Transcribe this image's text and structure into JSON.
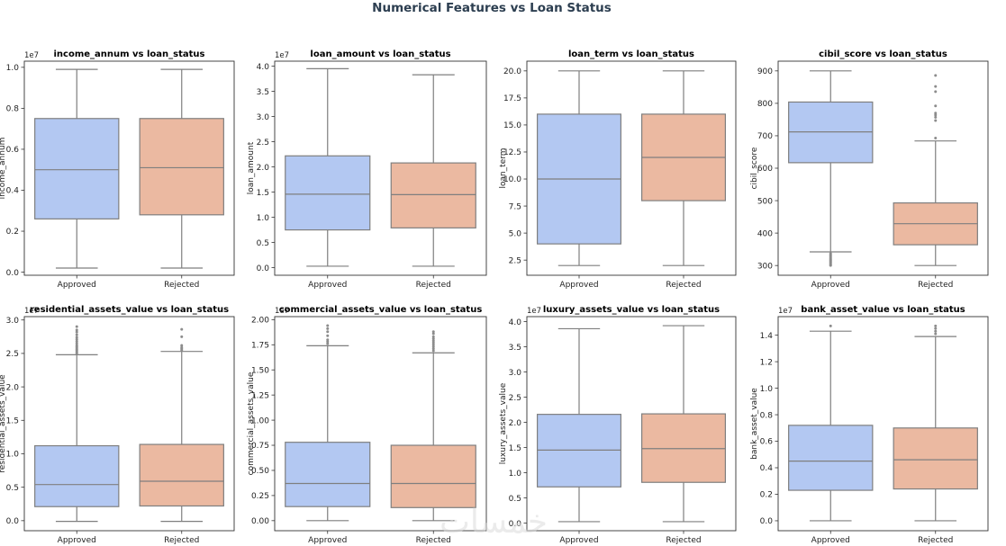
{
  "figure": {
    "suptitle": "Numerical Features vs Loan Status",
    "watermark": "خمسات",
    "palette": {
      "Approved": "#b3c8f2",
      "Rejected": "#ebb9a1",
      "line": "#7f7f7f",
      "outlier": "#8c8c8c"
    }
  },
  "chart_data": [
    {
      "type": "box",
      "title": "income_annum vs loan_status",
      "xlabel": "",
      "ylabel": "income_annum",
      "scale_label": "1e7",
      "categories": [
        "Approved",
        "Rejected"
      ],
      "ylim": [
        -0.015,
        1.03
      ],
      "yticks": [
        0.0,
        0.2,
        0.4,
        0.6,
        0.8,
        1.0
      ],
      "tick_fmt": 1,
      "boxes": [
        {
          "name": "Approved",
          "whislo": 0.02,
          "q1": 0.26,
          "med": 0.5,
          "q3": 0.75,
          "whishi": 0.99,
          "fliers": []
        },
        {
          "name": "Rejected",
          "whislo": 0.02,
          "q1": 0.28,
          "med": 0.51,
          "q3": 0.75,
          "whishi": 0.99,
          "fliers": []
        }
      ]
    },
    {
      "type": "box",
      "title": "loan_amount vs loan_status",
      "xlabel": "",
      "ylabel": "loan_amount",
      "scale_label": "1e7",
      "categories": [
        "Approved",
        "Rejected"
      ],
      "ylim": [
        -0.15,
        4.1
      ],
      "yticks": [
        0.0,
        0.5,
        1.0,
        1.5,
        2.0,
        2.5,
        3.0,
        3.5,
        4.0
      ],
      "tick_fmt": 1,
      "boxes": [
        {
          "name": "Approved",
          "whislo": 0.03,
          "q1": 0.75,
          "med": 1.46,
          "q3": 2.22,
          "whishi": 3.95,
          "fliers": []
        },
        {
          "name": "Rejected",
          "whislo": 0.03,
          "q1": 0.79,
          "med": 1.45,
          "q3": 2.08,
          "whishi": 3.83,
          "fliers": []
        }
      ]
    },
    {
      "type": "box",
      "title": "loan_term vs loan_status",
      "xlabel": "",
      "ylabel": "loan_term",
      "scale_label": "",
      "categories": [
        "Approved",
        "Rejected"
      ],
      "ylim": [
        1.1,
        20.9
      ],
      "yticks": [
        2.5,
        5.0,
        7.5,
        10.0,
        12.5,
        15.0,
        17.5,
        20.0
      ],
      "tick_fmt": 1,
      "boxes": [
        {
          "name": "Approved",
          "whislo": 2,
          "q1": 4,
          "med": 10,
          "q3": 16,
          "whishi": 20,
          "fliers": []
        },
        {
          "name": "Rejected",
          "whislo": 2,
          "q1": 8,
          "med": 12,
          "q3": 16,
          "whishi": 20,
          "fliers": []
        }
      ]
    },
    {
      "type": "box",
      "title": "cibil_score vs loan_status",
      "xlabel": "",
      "ylabel": "cibil_score",
      "scale_label": "",
      "categories": [
        "Approved",
        "Rejected"
      ],
      "ylim": [
        270,
        930
      ],
      "yticks": [
        300,
        400,
        500,
        600,
        700,
        800,
        900
      ],
      "tick_fmt": 0,
      "boxes": [
        {
          "name": "Approved",
          "whislo": 342,
          "q1": 617,
          "med": 712,
          "q3": 804,
          "whishi": 900,
          "fliers": [
            300,
            303,
            306,
            309,
            312,
            315,
            318,
            321,
            325,
            329,
            333,
            337
          ]
        },
        {
          "name": "Rejected",
          "whislo": 300,
          "q1": 364,
          "med": 429,
          "q3": 493,
          "whishi": 684,
          "fliers": [
            693,
            747,
            757,
            764,
            770,
            792,
            836,
            852,
            886
          ]
        }
      ]
    },
    {
      "type": "box",
      "title": "residential_assets_value vs loan_status",
      "xlabel": "",
      "ylabel": "residential_assets_value",
      "scale_label": "1e7",
      "categories": [
        "Approved",
        "Rejected"
      ],
      "ylim": [
        -0.15,
        3.05
      ],
      "yticks": [
        0.0,
        0.5,
        1.0,
        1.5,
        2.0,
        2.5,
        3.0
      ],
      "tick_fmt": 1,
      "boxes": [
        {
          "name": "Approved",
          "whislo": -0.01,
          "q1": 0.21,
          "med": 0.54,
          "q3": 1.12,
          "whishi": 2.48,
          "fliers": [
            2.5,
            2.52,
            2.54,
            2.56,
            2.58,
            2.6,
            2.62,
            2.65,
            2.68,
            2.71,
            2.74,
            2.78,
            2.82,
            2.85,
            2.9
          ]
        },
        {
          "name": "Rejected",
          "whislo": -0.01,
          "q1": 0.22,
          "med": 0.59,
          "q3": 1.14,
          "whishi": 2.53,
          "fliers": [
            2.55,
            2.57,
            2.59,
            2.62,
            2.75,
            2.86
          ]
        }
      ]
    },
    {
      "type": "box",
      "title": "commercial_assets_value vs loan_status",
      "xlabel": "",
      "ylabel": "commercial_assets_value",
      "scale_label": "1e7",
      "categories": [
        "Approved",
        "Rejected"
      ],
      "ylim": [
        -0.1,
        2.03
      ],
      "yticks": [
        0.0,
        0.25,
        0.5,
        0.75,
        1.0,
        1.25,
        1.5,
        1.75,
        2.0
      ],
      "tick_fmt": 2,
      "boxes": [
        {
          "name": "Approved",
          "whislo": 0.0,
          "q1": 0.14,
          "med": 0.37,
          "q3": 0.78,
          "whishi": 1.74,
          "fliers": [
            1.76,
            1.78,
            1.8,
            1.84,
            1.88,
            1.91,
            1.94
          ]
        },
        {
          "name": "Rejected",
          "whislo": 0.0,
          "q1": 0.13,
          "med": 0.37,
          "q3": 0.75,
          "whishi": 1.67,
          "fliers": [
            1.69,
            1.71,
            1.73,
            1.75,
            1.77,
            1.79,
            1.81,
            1.83,
            1.86,
            1.88
          ]
        }
      ]
    },
    {
      "type": "box",
      "title": "luxury_assets_value vs loan_status",
      "xlabel": "",
      "ylabel": "luxury_assets_value",
      "scale_label": "1e7",
      "categories": [
        "Approved",
        "Rejected"
      ],
      "ylim": [
        -0.15,
        4.1
      ],
      "yticks": [
        0.0,
        0.5,
        1.0,
        1.5,
        2.0,
        2.5,
        3.0,
        3.5,
        4.0
      ],
      "tick_fmt": 1,
      "boxes": [
        {
          "name": "Approved",
          "whislo": 0.03,
          "q1": 0.72,
          "med": 1.45,
          "q3": 2.16,
          "whishi": 3.86,
          "fliers": []
        },
        {
          "name": "Rejected",
          "whislo": 0.03,
          "q1": 0.81,
          "med": 1.48,
          "q3": 2.17,
          "whishi": 3.92,
          "fliers": []
        }
      ]
    },
    {
      "type": "box",
      "title": "bank_asset_value vs loan_status",
      "xlabel": "",
      "ylabel": "bank_asset_value",
      "scale_label": "1e7",
      "categories": [
        "Approved",
        "Rejected"
      ],
      "ylim": [
        -0.075,
        1.54
      ],
      "yticks": [
        0.0,
        0.2,
        0.4,
        0.6,
        0.8,
        1.0,
        1.2,
        1.4
      ],
      "tick_fmt": 1,
      "boxes": [
        {
          "name": "Approved",
          "whislo": 0.0,
          "q1": 0.23,
          "med": 0.45,
          "q3": 0.72,
          "whishi": 1.43,
          "fliers": [
            1.47
          ]
        },
        {
          "name": "Rejected",
          "whislo": 0.0,
          "q1": 0.24,
          "med": 0.46,
          "q3": 0.7,
          "whishi": 1.39,
          "fliers": [
            1.41,
            1.43,
            1.45,
            1.47
          ]
        }
      ]
    }
  ]
}
